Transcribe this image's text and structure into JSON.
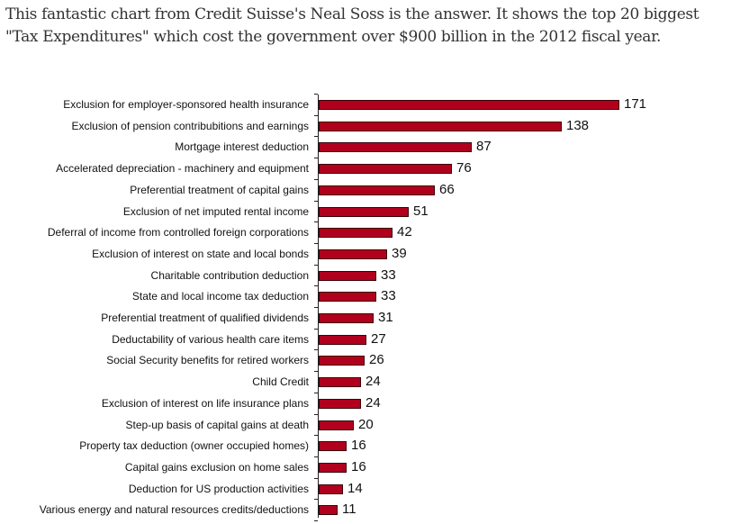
{
  "intro": {
    "line1": "This fantastic chart from Credit Suisse's Neal Soss is the answer. It shows the top 20 biggest",
    "line2": "\"Tax Expenditures\" which cost the government over $900 billion in the 2012 fiscal year."
  },
  "colors": {
    "bar_fill": "#b0001e",
    "bar_outline": "#3a0008",
    "text": "#111111"
  },
  "chart_data": {
    "type": "bar",
    "orientation": "horizontal",
    "title": "",
    "xlabel": "",
    "ylabel": "",
    "xlim": [
      0,
      180
    ],
    "grid": false,
    "data_labels": true,
    "categories": [
      "Exclusion for employer-sponsored health insurance",
      "Exclusion of pension contribubitions and earnings",
      "Mortgage interest deduction",
      "Accelerated depreciation - machinery and equipment",
      "Preferential treatment of capital gains",
      "Exclusion of net imputed rental income",
      "Deferral of income from controlled foreign corporations",
      "Exclusion of interest on state and local bonds",
      "Charitable contribution deduction",
      "State and local income tax deduction",
      "Preferential treatment of qualified dividends",
      "Deductability of various health care items",
      "Social Security benefits for retired workers",
      "Child Credit",
      "Exclusion of interest on life insurance plans",
      "Step-up basis of capital gains at death",
      "Property tax deduction (owner occupied homes)",
      "Capital gains exclusion on home sales",
      "Deduction for US production activities",
      "Various energy and natural resources credits/deductions"
    ],
    "values": [
      171,
      138,
      87,
      76,
      66,
      51,
      42,
      39,
      33,
      33,
      31,
      27,
      26,
      24,
      24,
      20,
      16,
      16,
      14,
      11
    ]
  }
}
